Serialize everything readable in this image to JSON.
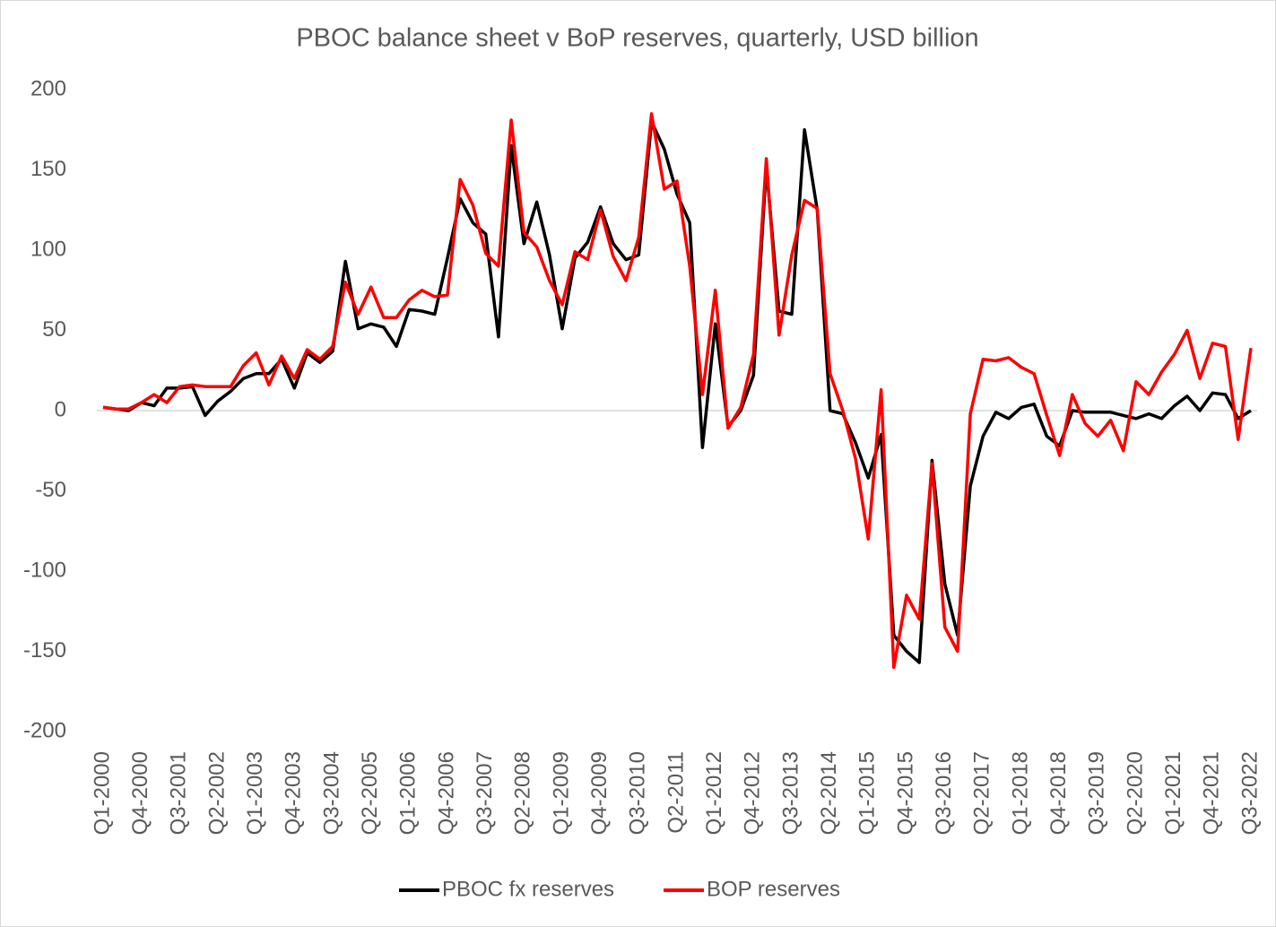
{
  "chart_data": {
    "type": "line",
    "title": "PBOC balance sheet v BoP reserves, quarterly, USD billion",
    "categories": [
      "Q1-2000",
      null,
      null,
      "Q4-2000",
      null,
      null,
      "Q3-2001",
      null,
      null,
      "Q2-2002",
      null,
      null,
      "Q1-2003",
      null,
      null,
      "Q4-2003",
      null,
      null,
      "Q3-2004",
      null,
      null,
      "Q2-2005",
      null,
      null,
      "Q1-2006",
      null,
      null,
      "Q4-2006",
      null,
      null,
      "Q3-2007",
      null,
      null,
      "Q2-2008",
      null,
      null,
      "Q1-2009",
      null,
      null,
      "Q4-2009",
      null,
      null,
      "Q3-2010",
      null,
      null,
      "Q2-2011",
      null,
      null,
      "Q1-2012",
      null,
      null,
      "Q4-2012",
      null,
      null,
      "Q3-2013",
      null,
      null,
      "Q2-2014",
      null,
      null,
      "Q1-2015",
      null,
      null,
      "Q4-2015",
      null,
      null,
      "Q3-2016",
      null,
      null,
      "Q2-2017",
      null,
      null,
      "Q1-2018",
      null,
      null,
      "Q4-2018",
      null,
      null,
      "Q3-2019",
      null,
      null,
      "Q2-2020",
      null,
      null,
      "Q1-2021",
      null,
      null,
      "Q4-2021",
      null,
      null,
      "Q3-2022"
    ],
    "series": [
      {
        "name": "PBOC fx reserves",
        "color": "#000000",
        "values": [
          2,
          1,
          0,
          5,
          3,
          14,
          14,
          15,
          -3,
          6,
          12,
          20,
          23,
          23,
          32,
          14,
          36,
          30,
          37,
          93,
          51,
          54,
          52,
          40,
          63,
          62,
          60,
          95,
          132,
          117,
          110,
          46,
          165,
          104,
          130,
          97,
          51,
          95,
          105,
          127,
          104,
          94,
          97,
          180,
          163,
          135,
          117,
          -23,
          54,
          -10,
          0,
          22,
          152,
          62,
          60,
          175,
          125,
          0,
          -2,
          -20,
          -42,
          -15,
          -140,
          -150,
          -157,
          -31,
          -108,
          -140,
          -47,
          -16,
          -1,
          -5,
          2,
          4,
          -16,
          -22,
          0,
          -1,
          -1,
          -1,
          -3,
          -5,
          -2,
          -5,
          3,
          9,
          0,
          11,
          10,
          -5,
          0
        ]
      },
      {
        "name": "BOP reserves",
        "color": "#ff0000",
        "values": [
          2,
          1,
          1,
          5,
          10,
          5,
          15,
          16,
          15,
          15,
          15,
          28,
          36,
          16,
          34,
          20,
          38,
          32,
          40,
          80,
          60,
          77,
          58,
          58,
          69,
          75,
          71,
          72,
          144,
          128,
          98,
          90,
          181,
          111,
          102,
          81,
          66,
          99,
          94,
          125,
          96,
          81,
          108,
          185,
          138,
          143,
          90,
          10,
          75,
          -11,
          2,
          35,
          157,
          47,
          97,
          131,
          126,
          23,
          0,
          -30,
          -80,
          13,
          -160,
          -115,
          -130,
          -33,
          -135,
          -150,
          -2,
          32,
          31,
          33,
          27,
          23,
          -3,
          -28,
          10,
          -8,
          -16,
          -6,
          -25,
          18,
          10,
          24,
          35,
          50,
          20,
          42,
          40,
          -18,
          39
        ]
      }
    ],
    "ylim": [
      -200,
      200
    ],
    "yticks": [
      -200,
      -150,
      -100,
      -50,
      0,
      50,
      100,
      150,
      200
    ],
    "grid": false,
    "legend": "bottom"
  }
}
